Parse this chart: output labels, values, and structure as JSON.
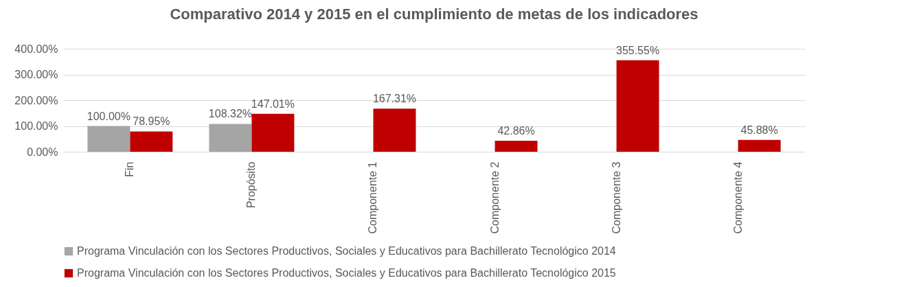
{
  "chart_data": {
    "type": "bar",
    "title": "Comparativo 2014 y 2015 en el cumplimiento de metas de los indicadores",
    "categories": [
      "Fin",
      "Propósito",
      "Componente 1",
      "Componente 2",
      "Componente 3",
      "Componente 4"
    ],
    "series": [
      {
        "name": "Programa Vinculación con los Sectores Productivos, Sociales y Educativos para Bachillerato Tecnológico  2014",
        "color": "#a5a5a5",
        "values": [
          100.0,
          108.32,
          null,
          null,
          null,
          null
        ],
        "value_labels": [
          "100.00%",
          "108.32%",
          null,
          null,
          null,
          null
        ]
      },
      {
        "name": "Programa Vinculación con los Sectores Productivos, Sociales y Educativos para Bachillerato Tecnológico  2015",
        "color": "#c00000",
        "values": [
          78.95,
          147.01,
          167.31,
          42.86,
          355.55,
          45.88
        ],
        "value_labels": [
          "78.95%",
          "147.01%",
          "167.31%",
          "42.86%",
          "355.55%",
          "45.88%"
        ]
      }
    ],
    "ylim": [
      0,
      400
    ],
    "yticks": [
      {
        "value": 0,
        "label": "0.00%"
      },
      {
        "value": 100,
        "label": "100.00%"
      },
      {
        "value": 200,
        "label": "200.00%"
      },
      {
        "value": 300,
        "label": "300.00%"
      },
      {
        "value": 400,
        "label": "400.00%"
      }
    ],
    "grid": "y",
    "legend": "bottom"
  }
}
